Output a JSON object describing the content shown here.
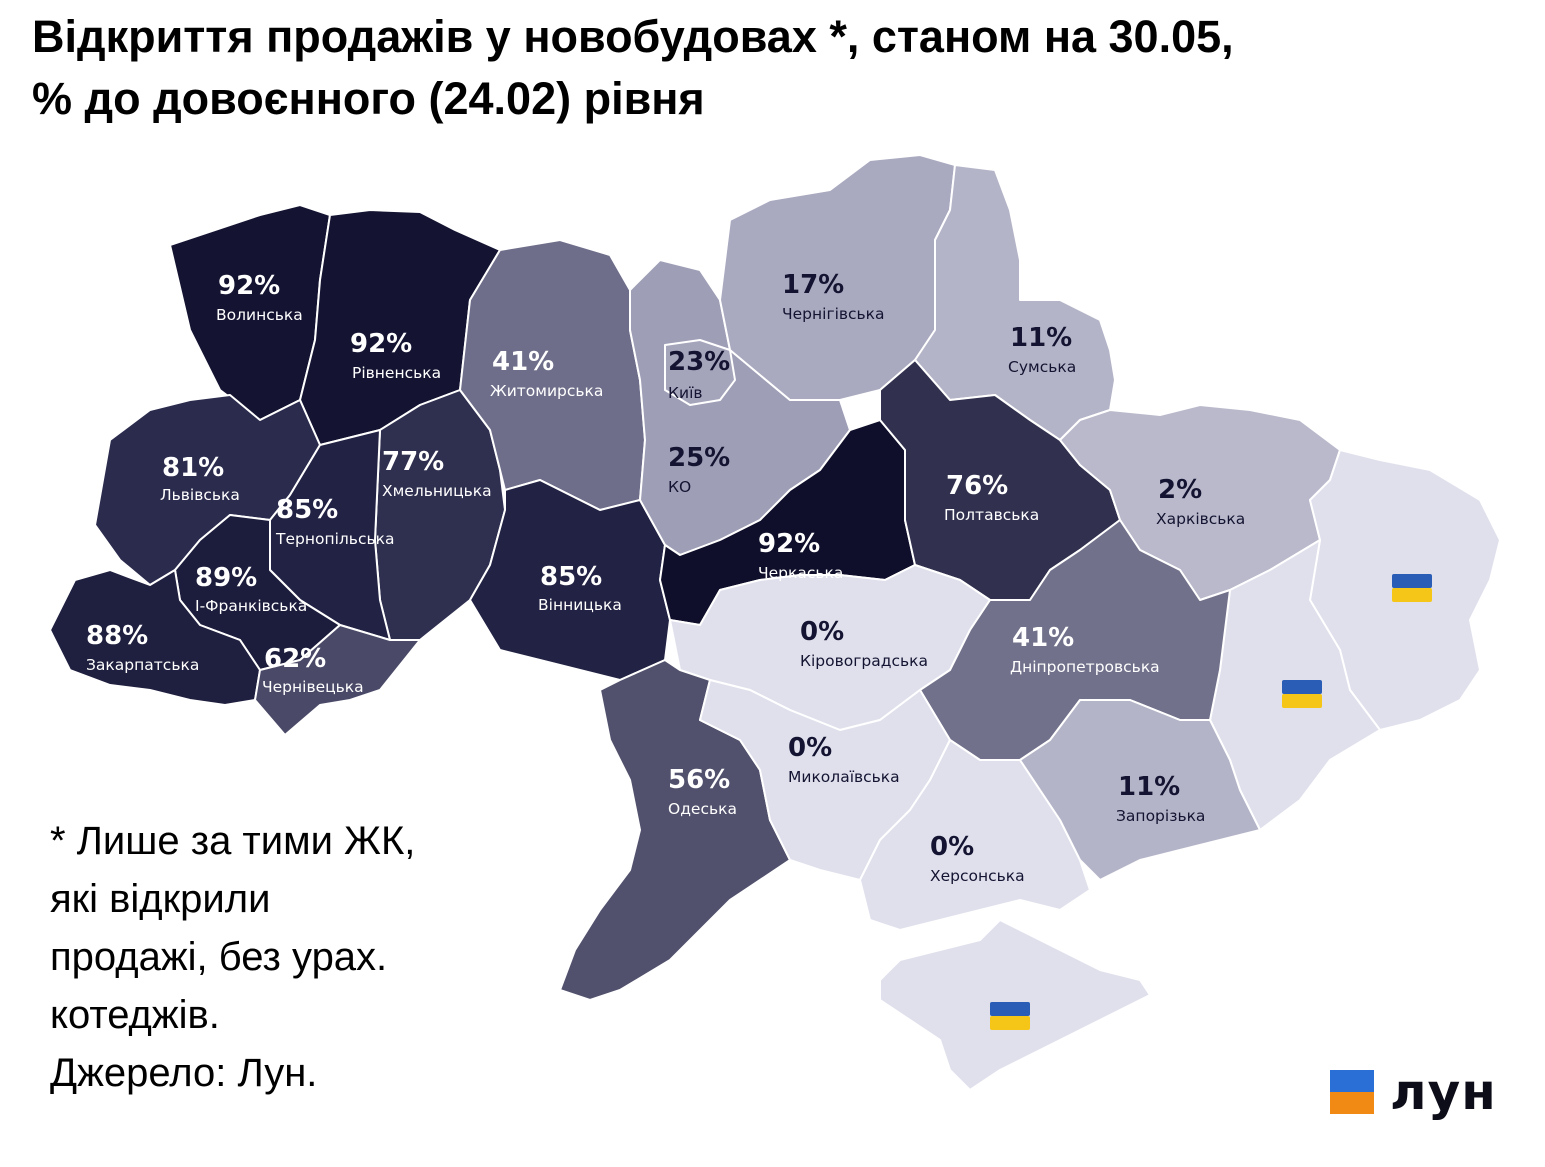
{
  "title": {
    "line1": "Відкриття продажів у новобудовах *, станом на 30.05,",
    "line2": "% до довоєнного (24.02) рівня"
  },
  "regions": [
    {
      "id": "volynska",
      "name": "Волинська",
      "value": "92%",
      "color": "#141432"
    },
    {
      "id": "rivnenska",
      "name": "Рівненська",
      "value": "92%",
      "color": "#141432"
    },
    {
      "id": "lvivska",
      "name": "Львівська",
      "value": "81%",
      "color": "#2b2b4e"
    },
    {
      "id": "ternopilska",
      "name": "Тернопільська",
      "value": "85%",
      "color": "#222244"
    },
    {
      "id": "khmelnytska",
      "name": "Хмельницька",
      "value": "77%",
      "color": "#2f2f50"
    },
    {
      "id": "ivano_frankivska",
      "name": "І-Франківська",
      "value": "89%",
      "color": "#1c1c3c"
    },
    {
      "id": "zakarpatska",
      "name": "Закарпатська",
      "value": "88%",
      "color": "#1f1f3f"
    },
    {
      "id": "chernivetska",
      "name": "Чернівецька",
      "value": "62%",
      "color": "#4a4a68"
    },
    {
      "id": "zhytomyrska",
      "name": "Житомирська",
      "value": "41%",
      "color": "#6e6e8a"
    },
    {
      "id": "kyivska",
      "name": "КО",
      "value": "25%",
      "color": "#9e9eb6"
    },
    {
      "id": "kyiv",
      "name": "Київ",
      "value": "23%",
      "color": "#a4a4bb"
    },
    {
      "id": "vinnytska",
      "name": "Вінницька",
      "value": "85%",
      "color": "#222244"
    },
    {
      "id": "chernihivska",
      "name": "Чернігівська",
      "value": "17%",
      "color": "#a9a9bf"
    },
    {
      "id": "sumska",
      "name": "Сумська",
      "value": "11%",
      "color": "#b4b4c8"
    },
    {
      "id": "cherkaska",
      "name": "Черкаська",
      "value": "92%",
      "color": "#0f0f2b"
    },
    {
      "id": "poltavska",
      "name": "Полтавська",
      "value": "76%",
      "color": "#31314f"
    },
    {
      "id": "kharkivska",
      "name": "Харківська",
      "value": "2%",
      "color": "#b9b9cb"
    },
    {
      "id": "kirovohradska",
      "name": "Кіровоградська",
      "value": "0%",
      "color": "#dfe0ec"
    },
    {
      "id": "dnipropetrovska",
      "name": "Дніпропетровська",
      "value": "41%",
      "color": "#71718b"
    },
    {
      "id": "odeska",
      "name": "Одеська",
      "value": "56%",
      "color": "#51516d"
    },
    {
      "id": "mykolaivska",
      "name": "Миколаївська",
      "value": "0%",
      "color": "#dfe0ec"
    },
    {
      "id": "khersonska",
      "name": "Херсонська",
      "value": "0%",
      "color": "#dfe0ec"
    },
    {
      "id": "zaporizka",
      "name": "Запорізька",
      "value": "11%",
      "color": "#b4b4c8"
    },
    {
      "id": "donetska",
      "color": "#dfe0ec"
    },
    {
      "id": "luhanska",
      "color": "#dfe0ec"
    },
    {
      "id": "crimea",
      "color": "#dfe0ec"
    }
  ],
  "flags": [
    "ukraine-flag-icon",
    "ukraine-flag-icon",
    "ukraine-flag-icon"
  ],
  "colors": {
    "border": "#ffffff",
    "flag_blue": "#2a5db6",
    "flag_yellow": "#f5c518",
    "logo_blue": "#2a6fd6",
    "logo_orange": "#f08a14"
  },
  "note": {
    "line1": "* Лише за тими ЖК,",
    "line2": "які відкрили",
    "line3": "продажі, без урах.",
    "line4": "котеджів.",
    "line5": "Джерело: Лун."
  },
  "logo": {
    "text": "лун"
  }
}
